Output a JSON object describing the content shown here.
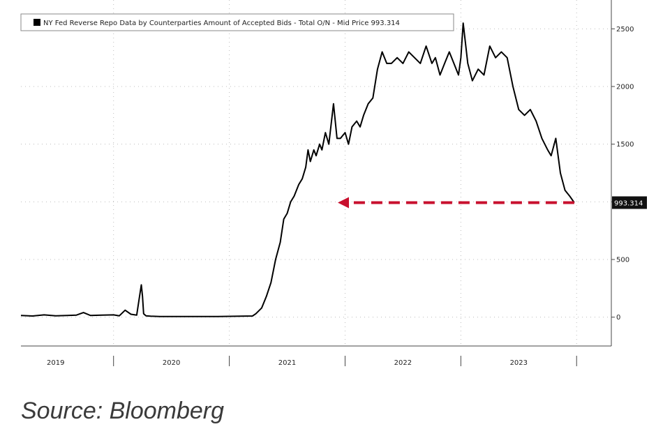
{
  "chart_data": {
    "type": "line",
    "legend_text": "NY Fed Reverse Repo Data by Counterparties Amount of Accepted Bids - Total O/N - Mid Price 993.314",
    "legend_position": "top-left",
    "x_ticks": [
      "2019",
      "2020",
      "2021",
      "2022",
      "2023"
    ],
    "y_ticks": [
      0,
      500,
      1000,
      1500,
      2000,
      2500
    ],
    "ylim": [
      -250,
      2750
    ],
    "xlim": [
      2018.7,
      2023.8
    ],
    "grid": true,
    "last_value_label": "993.314",
    "series": [
      {
        "color": "#000000",
        "x": [
          2018.7,
          2018.8,
          2018.9,
          2019.0,
          2019.1,
          2019.18,
          2019.24,
          2019.3,
          2019.4,
          2019.5,
          2019.55,
          2019.6,
          2019.65,
          2019.7,
          2019.72,
          2019.74,
          2019.75,
          2019.76,
          2019.78,
          2019.82,
          2019.9,
          2020.0,
          2020.2,
          2020.4,
          2020.6,
          2020.7,
          2020.73,
          2020.78,
          2020.82,
          2020.86,
          2020.9,
          2020.94,
          2020.97,
          2021.0,
          2021.03,
          2021.06,
          2021.1,
          2021.13,
          2021.16,
          2021.18,
          2021.2,
          2021.23,
          2021.25,
          2021.28,
          2021.3,
          2021.33,
          2021.36,
          2021.4,
          2021.43,
          2021.46,
          2021.5,
          2021.53,
          2021.56,
          2021.6,
          2021.63,
          2021.66,
          2021.7,
          2021.74,
          2021.78,
          2021.82,
          2021.86,
          2021.9,
          2021.95,
          2022.0,
          2022.05,
          2022.1,
          2022.15,
          2022.2,
          2022.25,
          2022.28,
          2022.32,
          2022.36,
          2022.4,
          2022.44,
          2022.48,
          2022.5,
          2022.52,
          2022.56,
          2022.6,
          2022.65,
          2022.7,
          2022.75,
          2022.8,
          2022.85,
          2022.9,
          2022.95,
          2023.0,
          2023.05,
          2023.1,
          2023.15,
          2023.2,
          2023.25,
          2023.28,
          2023.32,
          2023.36,
          2023.4,
          2023.44,
          2023.48
        ],
        "y": [
          15,
          10,
          20,
          12,
          15,
          18,
          40,
          15,
          18,
          20,
          12,
          60,
          25,
          18,
          150,
          280,
          180,
          30,
          12,
          8,
          5,
          5,
          5,
          5,
          8,
          10,
          30,
          80,
          180,
          300,
          500,
          650,
          850,
          900,
          1000,
          1050,
          1150,
          1200,
          1300,
          1450,
          1350,
          1450,
          1400,
          1500,
          1450,
          1600,
          1500,
          1850,
          1550,
          1550,
          1600,
          1500,
          1650,
          1700,
          1650,
          1750,
          1850,
          1900,
          2150,
          2300,
          2200,
          2200,
          2250,
          2200,
          2300,
          2250,
          2200,
          2350,
          2200,
          2250,
          2100,
          2200,
          2300,
          2200,
          2100,
          2250,
          2550,
          2200,
          2050,
          2150,
          2100,
          2350,
          2250,
          2300,
          2250,
          2000,
          1800,
          1750,
          1800,
          1700,
          1550,
          1450,
          1400,
          1550,
          1250,
          1100,
          1050,
          993
        ]
      }
    ]
  },
  "source": "Source: Bloomberg"
}
